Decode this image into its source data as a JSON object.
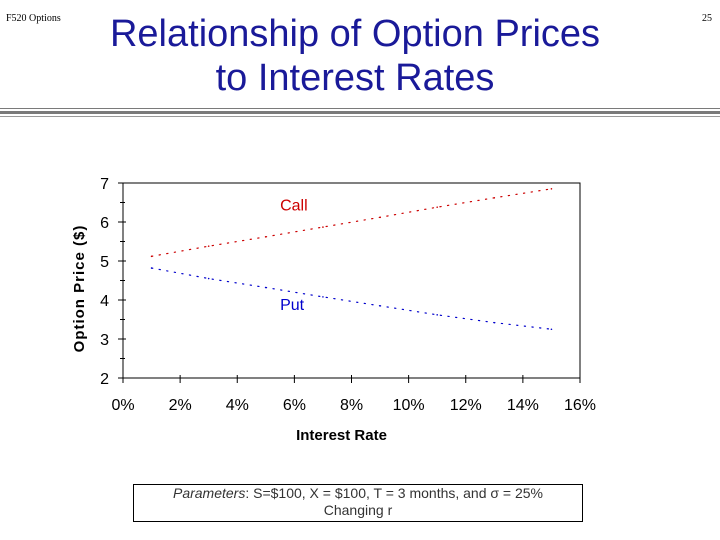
{
  "header": {
    "course": "F520 Options",
    "page_number": "25"
  },
  "title": {
    "line1": "Relationship of Option Prices",
    "line2": "to Interest Rates"
  },
  "chart_data": {
    "type": "line",
    "xlabel": "Interest Rate",
    "ylabel": "Option Price ($)",
    "xlim": [
      0,
      0.16
    ],
    "ylim": [
      2,
      7
    ],
    "x_ticks": [
      0,
      0.02,
      0.04,
      0.06,
      0.08,
      0.1,
      0.12,
      0.14,
      0.16
    ],
    "x_tick_labels": [
      "0%",
      "2%",
      "4%",
      "6%",
      "8%",
      "10%",
      "12%",
      "14%",
      "16%"
    ],
    "y_ticks": [
      2,
      3,
      4,
      5,
      6,
      7
    ],
    "y_tick_labels": [
      "2",
      "3",
      "4",
      "5",
      "6",
      "7"
    ],
    "grid": false,
    "line_style": "dotted",
    "series": [
      {
        "name": "Call",
        "color": "#cc0000",
        "x": [
          0.01,
          0.03,
          0.05,
          0.07,
          0.09,
          0.11,
          0.13,
          0.15
        ],
        "values": [
          5.12,
          5.38,
          5.62,
          5.87,
          6.12,
          6.38,
          6.62,
          6.85
        ]
      },
      {
        "name": "Put",
        "color": "#0000cc",
        "x": [
          0.01,
          0.03,
          0.05,
          0.07,
          0.09,
          0.11,
          0.13,
          0.15
        ],
        "values": [
          4.82,
          4.55,
          4.32,
          4.08,
          3.85,
          3.62,
          3.42,
          3.25
        ]
      }
    ],
    "annotations": [
      {
        "text": "Call",
        "color": "#cc0000",
        "x": 0.055,
        "y": 6.3
      },
      {
        "text": "Put",
        "color": "#0000cc",
        "x": 0.055,
        "y": 3.75
      }
    ]
  },
  "parameters": {
    "label": "Parameters",
    "text": ":  S=$100, X = $100, T = 3 months, and σ = 25%",
    "line2": "Changing r"
  }
}
